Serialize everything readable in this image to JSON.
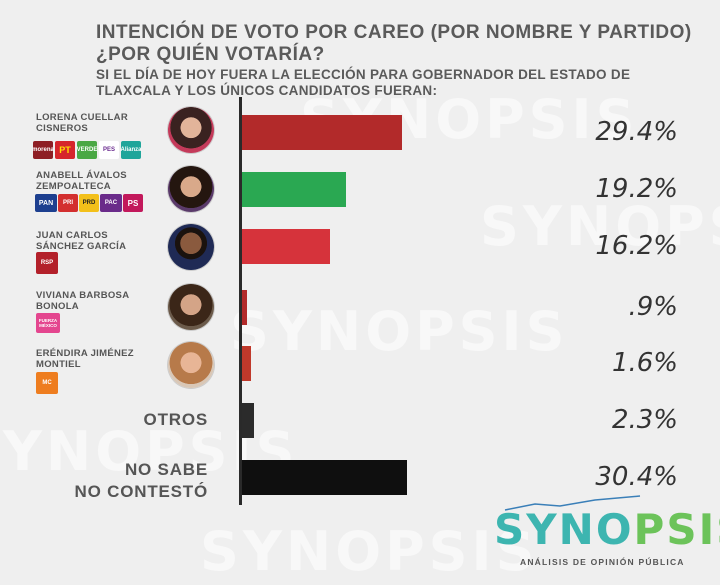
{
  "header": {
    "title_line1": "INTENCIÓN DE VOTO POR CAREO (POR NOMBRE Y PARTIDO)",
    "title_line2": "¿POR QUIÉN VOTARÍA?",
    "subtitle": "SI EL DÍA DE HOY FUERA LA ELECCIÓN PARA GOBERNADOR DEL ESTADO DE TLAXCALA Y LOS ÚNICOS CANDIDATOS FUERAN:"
  },
  "watermark": "SYNOPSIS",
  "brand": {
    "name_part1": "SYNO",
    "name_part2": "PSIS",
    "tagline": "ANÁLISIS DE OPINIÓN PÚBLICA",
    "color1": "#3db5b0",
    "color2": "#6cc35a"
  },
  "candidates": [
    {
      "name": "LORENA CUELLAR CISNEROS",
      "party_logos": [
        "morena",
        "PT",
        "VERDE",
        "PES",
        "Alianza"
      ]
    },
    {
      "name": "ANABELL ÁVALOS ZEMPOALTECA",
      "party_logos": [
        "PAN",
        "PRI",
        "PRD",
        "PAC",
        "PS"
      ]
    },
    {
      "name": "JUAN CARLOS SÁNCHEZ GARCÍA",
      "party_logos": [
        "RSP"
      ]
    },
    {
      "name": "VIVIANA BARBOSA BONOLA",
      "party_logos": [
        "FUERZA MÉXICO"
      ]
    },
    {
      "name": "ERÉNDIRA JIMÉNEZ MONTIEL",
      "party_logos": [
        "MC"
      ]
    }
  ],
  "other_labels": {
    "otros": "OTROS",
    "nosabe_line1": "NO SABE",
    "nosabe_line2": "NO CONTESTÓ"
  },
  "chart_data": {
    "type": "bar",
    "orientation": "horizontal",
    "title": "INTENCIÓN DE VOTO POR CAREO (POR NOMBRE Y PARTIDO)",
    "categories": [
      "LORENA CUELLAR CISNEROS",
      "ANABELL ÁVALOS ZEMPOALTECA",
      "JUAN CARLOS SÁNCHEZ GARCÍA",
      "VIVIANA BARBOSA BONOLA",
      "ERÉNDIRA JIMÉNEZ MONTIEL",
      "OTROS",
      "NO SABE NO CONTESTÓ"
    ],
    "values": [
      29.4,
      19.2,
      16.2,
      0.9,
      1.6,
      2.3,
      30.4
    ],
    "value_labels": [
      "29.4%",
      "19.2%",
      "16.2%",
      ".9%",
      "1.6%",
      "2.3%",
      "30.4%"
    ],
    "colors": [
      "#b22a2a",
      "#2aa852",
      "#d6333b",
      "#b22a2a",
      "#c0392b",
      "#2b2b2b",
      "#0f0f0f"
    ],
    "xlim": [
      0,
      30.4
    ]
  }
}
